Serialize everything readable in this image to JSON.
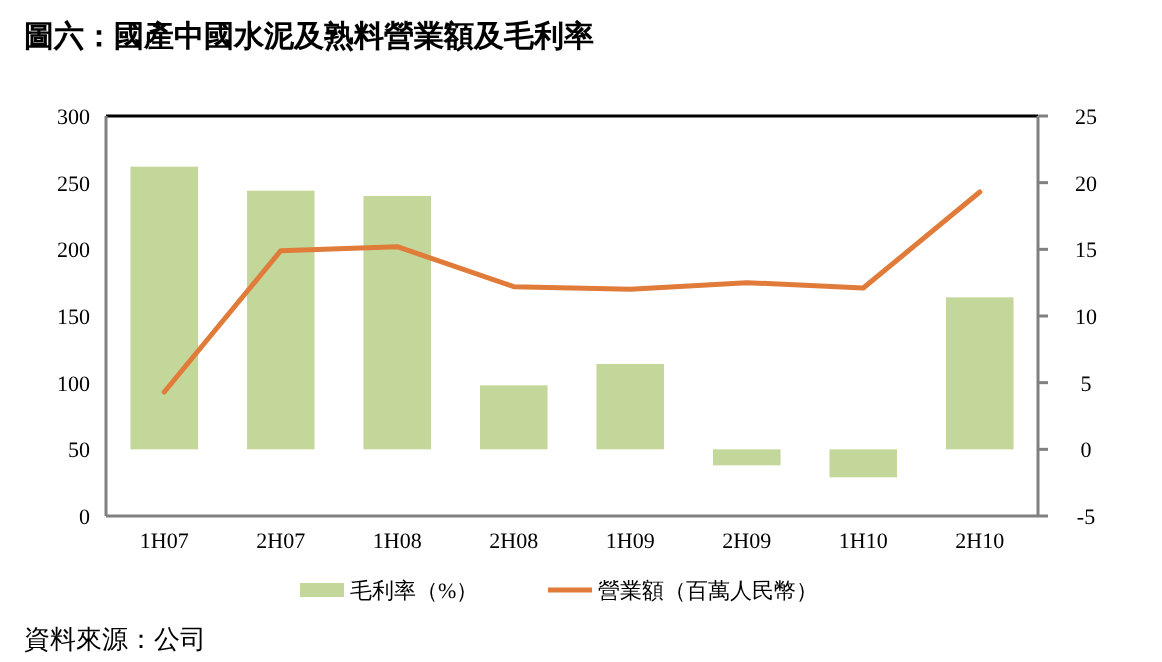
{
  "chart_data": {
    "type": "bar",
    "title": "圖六：國產中國水泥及熟料營業額及毛利率",
    "categories": [
      "1H07",
      "2H07",
      "1H08",
      "2H08",
      "1H09",
      "2H09",
      "1H10",
      "2H10"
    ],
    "series": [
      {
        "name": "毛利率（%）",
        "axis": "y2",
        "color": "#c4d79b",
        "values": [
          21.2,
          19.4,
          19.0,
          4.8,
          6.4,
          -1.2,
          -2.1,
          11.4
        ]
      },
      {
        "name": "營業額（百萬人民幣）",
        "type": "line",
        "color": "#e07b39",
        "values": [
          93,
          199,
          202,
          172,
          170,
          175,
          171,
          243
        ]
      }
    ],
    "ylim": [
      0,
      300
    ],
    "yticks": [
      0,
      50,
      100,
      150,
      200,
      250,
      300
    ],
    "y2lim": [
      -5,
      25
    ],
    "y2ticks": [
      -5,
      0,
      5,
      10,
      15,
      20,
      25
    ],
    "legend": "bottom",
    "grid": false,
    "annotations": [
      "資料來源：公司"
    ]
  }
}
